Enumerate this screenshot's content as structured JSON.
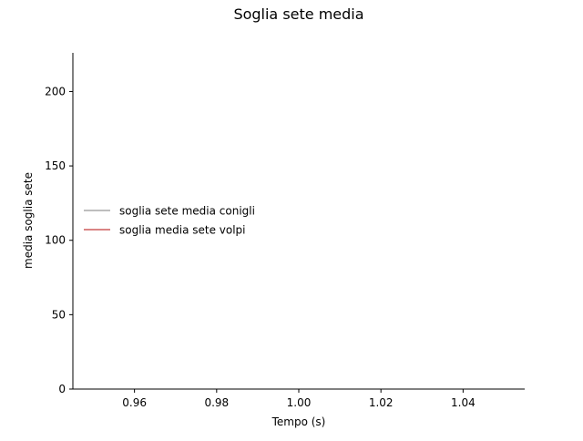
{
  "chart_data": {
    "type": "line",
    "title": "Soglia sete media",
    "xlabel": "Tempo (s)",
    "ylabel": "media soglia sete",
    "xlim": [
      0.945,
      1.055
    ],
    "ylim": [
      0,
      226
    ],
    "x_ticks": [
      0.96,
      0.98,
      1.0,
      1.02,
      1.04
    ],
    "x_tick_labels": [
      "0.96",
      "0.98",
      "1.00",
      "1.02",
      "1.04"
    ],
    "y_ticks": [
      0,
      50,
      100,
      150,
      200
    ],
    "y_tick_labels": [
      "0",
      "50",
      "100",
      "150",
      "200"
    ],
    "grid": false,
    "legend_position": "center-left",
    "series": [
      {
        "name": "soglia sete media conigli",
        "color": "#a9a9a9",
        "x": [],
        "y": []
      },
      {
        "name": "soglia media sete volpi",
        "color": "#cd5c5c",
        "x": [],
        "y": []
      }
    ]
  }
}
